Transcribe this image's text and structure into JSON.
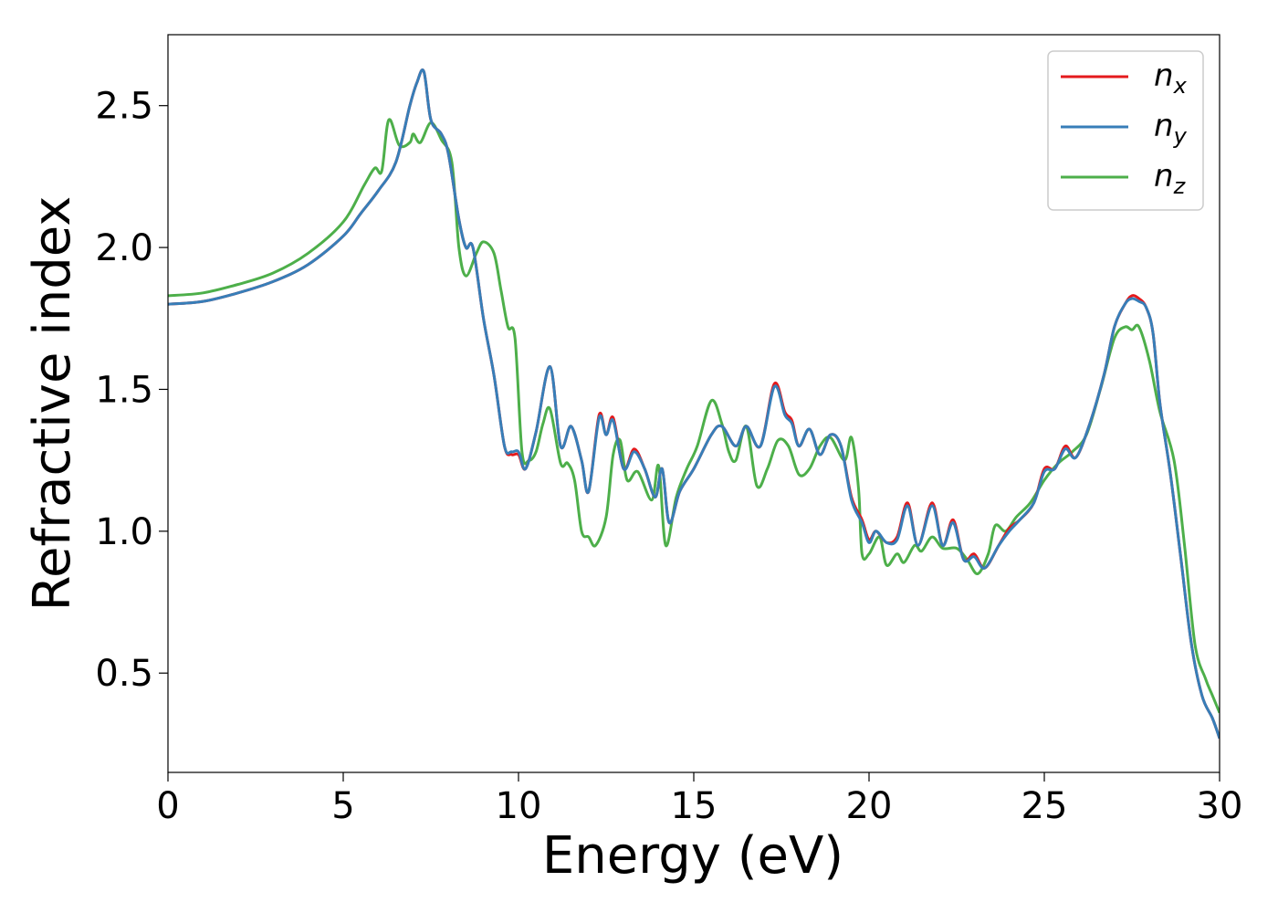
{
  "chart_data": {
    "type": "line",
    "title": "",
    "xlabel": "Energy (eV)",
    "ylabel": "Refractive index",
    "xlim": [
      0,
      30
    ],
    "ylim": [
      0.15,
      2.75
    ],
    "xticks": [
      0,
      5,
      10,
      15,
      20,
      25,
      30
    ],
    "yticks": [
      0.5,
      1.0,
      1.5,
      2.0,
      2.5
    ],
    "xtick_labels": [
      "0",
      "5",
      "10",
      "15",
      "20",
      "25",
      "30"
    ],
    "ytick_labels": [
      "0.5",
      "1.0",
      "1.5",
      "2.0",
      "2.5"
    ],
    "grid": false,
    "legend_position": "top-right",
    "series": [
      {
        "name": "n_x",
        "label_base": "n",
        "label_sub": "x",
        "color": "#e41a1c",
        "points": [
          [
            0,
            1.8
          ],
          [
            1,
            1.81
          ],
          [
            2,
            1.84
          ],
          [
            3,
            1.88
          ],
          [
            4,
            1.94
          ],
          [
            5,
            2.04
          ],
          [
            5.5,
            2.12
          ],
          [
            6,
            2.2
          ],
          [
            6.5,
            2.3
          ],
          [
            6.9,
            2.5
          ],
          [
            7.1,
            2.58
          ],
          [
            7.3,
            2.62
          ],
          [
            7.5,
            2.45
          ],
          [
            7.8,
            2.4
          ],
          [
            8.0,
            2.33
          ],
          [
            8.3,
            2.1
          ],
          [
            8.5,
            2.0
          ],
          [
            8.7,
            2.0
          ],
          [
            9.0,
            1.75
          ],
          [
            9.3,
            1.55
          ],
          [
            9.6,
            1.3
          ],
          [
            9.8,
            1.27
          ],
          [
            10.0,
            1.27
          ],
          [
            10.2,
            1.22
          ],
          [
            10.5,
            1.35
          ],
          [
            10.9,
            1.58
          ],
          [
            11.2,
            1.3
          ],
          [
            11.5,
            1.37
          ],
          [
            11.8,
            1.25
          ],
          [
            12.0,
            1.14
          ],
          [
            12.3,
            1.41
          ],
          [
            12.5,
            1.34
          ],
          [
            12.7,
            1.4
          ],
          [
            13.0,
            1.22
          ],
          [
            13.3,
            1.29
          ],
          [
            13.6,
            1.22
          ],
          [
            13.9,
            1.12
          ],
          [
            14.1,
            1.22
          ],
          [
            14.3,
            1.03
          ],
          [
            14.6,
            1.14
          ],
          [
            15.0,
            1.22
          ],
          [
            15.5,
            1.34
          ],
          [
            15.8,
            1.37
          ],
          [
            16.2,
            1.3
          ],
          [
            16.5,
            1.37
          ],
          [
            16.9,
            1.3
          ],
          [
            17.3,
            1.52
          ],
          [
            17.6,
            1.42
          ],
          [
            17.8,
            1.39
          ],
          [
            18.0,
            1.3
          ],
          [
            18.3,
            1.36
          ],
          [
            18.6,
            1.27
          ],
          [
            18.9,
            1.34
          ],
          [
            19.2,
            1.3
          ],
          [
            19.5,
            1.12
          ],
          [
            19.8,
            1.04
          ],
          [
            20.0,
            0.97
          ],
          [
            20.2,
            1.0
          ],
          [
            20.5,
            0.96
          ],
          [
            20.8,
            0.98
          ],
          [
            21.1,
            1.1
          ],
          [
            21.4,
            0.95
          ],
          [
            21.8,
            1.1
          ],
          [
            22.1,
            0.95
          ],
          [
            22.4,
            1.04
          ],
          [
            22.7,
            0.9
          ],
          [
            23.0,
            0.92
          ],
          [
            23.3,
            0.87
          ],
          [
            23.7,
            0.95
          ],
          [
            24.0,
            1.01
          ],
          [
            24.3,
            1.04
          ],
          [
            24.7,
            1.1
          ],
          [
            25.0,
            1.22
          ],
          [
            25.3,
            1.22
          ],
          [
            25.6,
            1.3
          ],
          [
            25.9,
            1.26
          ],
          [
            26.3,
            1.38
          ],
          [
            26.7,
            1.55
          ],
          [
            27.0,
            1.72
          ],
          [
            27.3,
            1.8
          ],
          [
            27.5,
            1.83
          ],
          [
            27.7,
            1.82
          ],
          [
            27.9,
            1.79
          ],
          [
            28.1,
            1.7
          ],
          [
            28.3,
            1.45
          ],
          [
            28.6,
            1.2
          ],
          [
            28.9,
            0.9
          ],
          [
            29.2,
            0.6
          ],
          [
            29.5,
            0.42
          ],
          [
            29.8,
            0.34
          ],
          [
            30.0,
            0.27
          ]
        ]
      },
      {
        "name": "n_y",
        "label_base": "n",
        "label_sub": "y",
        "color": "#377eb8",
        "points": [
          [
            0,
            1.8
          ],
          [
            1,
            1.81
          ],
          [
            2,
            1.84
          ],
          [
            3,
            1.88
          ],
          [
            4,
            1.94
          ],
          [
            5,
            2.04
          ],
          [
            5.5,
            2.12
          ],
          [
            6,
            2.2
          ],
          [
            6.5,
            2.3
          ],
          [
            6.9,
            2.5
          ],
          [
            7.1,
            2.58
          ],
          [
            7.3,
            2.62
          ],
          [
            7.5,
            2.45
          ],
          [
            7.8,
            2.4
          ],
          [
            8.0,
            2.33
          ],
          [
            8.3,
            2.1
          ],
          [
            8.5,
            2.0
          ],
          [
            8.7,
            2.0
          ],
          [
            9.0,
            1.75
          ],
          [
            9.3,
            1.55
          ],
          [
            9.6,
            1.3
          ],
          [
            9.8,
            1.28
          ],
          [
            10.0,
            1.28
          ],
          [
            10.2,
            1.22
          ],
          [
            10.5,
            1.35
          ],
          [
            10.9,
            1.58
          ],
          [
            11.2,
            1.3
          ],
          [
            11.5,
            1.37
          ],
          [
            11.8,
            1.25
          ],
          [
            12.0,
            1.14
          ],
          [
            12.3,
            1.4
          ],
          [
            12.5,
            1.34
          ],
          [
            12.7,
            1.39
          ],
          [
            13.0,
            1.22
          ],
          [
            13.3,
            1.28
          ],
          [
            13.6,
            1.22
          ],
          [
            13.9,
            1.12
          ],
          [
            14.1,
            1.22
          ],
          [
            14.3,
            1.03
          ],
          [
            14.6,
            1.14
          ],
          [
            15.0,
            1.22
          ],
          [
            15.5,
            1.34
          ],
          [
            15.8,
            1.37
          ],
          [
            16.2,
            1.3
          ],
          [
            16.5,
            1.37
          ],
          [
            16.9,
            1.3
          ],
          [
            17.3,
            1.51
          ],
          [
            17.6,
            1.41
          ],
          [
            17.8,
            1.38
          ],
          [
            18.0,
            1.3
          ],
          [
            18.3,
            1.36
          ],
          [
            18.6,
            1.27
          ],
          [
            18.9,
            1.34
          ],
          [
            19.2,
            1.3
          ],
          [
            19.5,
            1.11
          ],
          [
            19.8,
            1.03
          ],
          [
            20.0,
            0.96
          ],
          [
            20.2,
            1.0
          ],
          [
            20.5,
            0.96
          ],
          [
            20.8,
            0.97
          ],
          [
            21.1,
            1.09
          ],
          [
            21.4,
            0.95
          ],
          [
            21.8,
            1.09
          ],
          [
            22.1,
            0.95
          ],
          [
            22.4,
            1.03
          ],
          [
            22.7,
            0.9
          ],
          [
            23.0,
            0.91
          ],
          [
            23.3,
            0.87
          ],
          [
            23.7,
            0.95
          ],
          [
            24.0,
            1.0
          ],
          [
            24.3,
            1.04
          ],
          [
            24.7,
            1.1
          ],
          [
            25.0,
            1.21
          ],
          [
            25.3,
            1.22
          ],
          [
            25.6,
            1.29
          ],
          [
            25.9,
            1.26
          ],
          [
            26.3,
            1.38
          ],
          [
            26.7,
            1.55
          ],
          [
            27.0,
            1.72
          ],
          [
            27.3,
            1.8
          ],
          [
            27.5,
            1.82
          ],
          [
            27.7,
            1.81
          ],
          [
            27.9,
            1.79
          ],
          [
            28.1,
            1.7
          ],
          [
            28.3,
            1.45
          ],
          [
            28.6,
            1.2
          ],
          [
            28.9,
            0.9
          ],
          [
            29.2,
            0.6
          ],
          [
            29.5,
            0.42
          ],
          [
            29.8,
            0.34
          ],
          [
            30.0,
            0.27
          ]
        ]
      },
      {
        "name": "n_z",
        "label_base": "n",
        "label_sub": "z",
        "color": "#4daf4a",
        "points": [
          [
            0,
            1.83
          ],
          [
            1,
            1.84
          ],
          [
            2,
            1.87
          ],
          [
            3,
            1.91
          ],
          [
            4,
            1.98
          ],
          [
            5,
            2.09
          ],
          [
            5.6,
            2.22
          ],
          [
            5.9,
            2.28
          ],
          [
            6.1,
            2.27
          ],
          [
            6.3,
            2.45
          ],
          [
            6.6,
            2.36
          ],
          [
            6.9,
            2.37
          ],
          [
            7.0,
            2.4
          ],
          [
            7.2,
            2.37
          ],
          [
            7.5,
            2.44
          ],
          [
            7.8,
            2.38
          ],
          [
            8.1,
            2.3
          ],
          [
            8.3,
            2.0
          ],
          [
            8.5,
            1.9
          ],
          [
            8.8,
            1.98
          ],
          [
            9.0,
            2.02
          ],
          [
            9.3,
            1.98
          ],
          [
            9.5,
            1.85
          ],
          [
            9.7,
            1.72
          ],
          [
            9.9,
            1.68
          ],
          [
            10.1,
            1.28
          ],
          [
            10.3,
            1.25
          ],
          [
            10.5,
            1.28
          ],
          [
            10.7,
            1.38
          ],
          [
            10.9,
            1.43
          ],
          [
            11.2,
            1.24
          ],
          [
            11.4,
            1.24
          ],
          [
            11.6,
            1.18
          ],
          [
            11.8,
            1.0
          ],
          [
            12.0,
            0.98
          ],
          [
            12.2,
            0.95
          ],
          [
            12.5,
            1.05
          ],
          [
            12.7,
            1.27
          ],
          [
            12.9,
            1.32
          ],
          [
            13.1,
            1.18
          ],
          [
            13.4,
            1.21
          ],
          [
            13.8,
            1.11
          ],
          [
            14.0,
            1.23
          ],
          [
            14.2,
            0.95
          ],
          [
            14.5,
            1.12
          ],
          [
            14.8,
            1.22
          ],
          [
            15.1,
            1.3
          ],
          [
            15.5,
            1.46
          ],
          [
            15.8,
            1.38
          ],
          [
            16.0,
            1.28
          ],
          [
            16.2,
            1.25
          ],
          [
            16.5,
            1.37
          ],
          [
            16.8,
            1.16
          ],
          [
            17.1,
            1.22
          ],
          [
            17.4,
            1.32
          ],
          [
            17.7,
            1.3
          ],
          [
            18.0,
            1.2
          ],
          [
            18.3,
            1.22
          ],
          [
            18.6,
            1.3
          ],
          [
            18.9,
            1.33
          ],
          [
            19.3,
            1.25
          ],
          [
            19.5,
            1.33
          ],
          [
            19.7,
            1.15
          ],
          [
            19.8,
            0.92
          ],
          [
            20.0,
            0.92
          ],
          [
            20.3,
            0.98
          ],
          [
            20.5,
            0.88
          ],
          [
            20.8,
            0.92
          ],
          [
            21.0,
            0.89
          ],
          [
            21.3,
            0.95
          ],
          [
            21.5,
            0.93
          ],
          [
            21.8,
            0.98
          ],
          [
            22.1,
            0.94
          ],
          [
            22.5,
            0.94
          ],
          [
            22.8,
            0.9
          ],
          [
            23.1,
            0.85
          ],
          [
            23.4,
            0.92
          ],
          [
            23.6,
            1.02
          ],
          [
            23.9,
            1.0
          ],
          [
            24.2,
            1.05
          ],
          [
            24.6,
            1.1
          ],
          [
            25.0,
            1.18
          ],
          [
            25.4,
            1.24
          ],
          [
            25.8,
            1.28
          ],
          [
            26.2,
            1.34
          ],
          [
            26.6,
            1.5
          ],
          [
            27.0,
            1.68
          ],
          [
            27.3,
            1.72
          ],
          [
            27.5,
            1.71
          ],
          [
            27.7,
            1.72
          ],
          [
            28.0,
            1.6
          ],
          [
            28.3,
            1.42
          ],
          [
            28.7,
            1.25
          ],
          [
            29.0,
            0.95
          ],
          [
            29.3,
            0.6
          ],
          [
            29.6,
            0.48
          ],
          [
            29.8,
            0.42
          ],
          [
            30.0,
            0.36
          ]
        ]
      }
    ]
  }
}
